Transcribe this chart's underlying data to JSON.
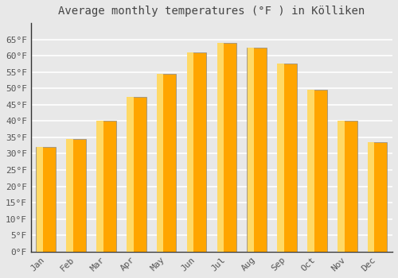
{
  "title": "Average monthly temperatures (°F ) in Kölliken",
  "months": [
    "Jan",
    "Feb",
    "Mar",
    "Apr",
    "May",
    "Jun",
    "Jul",
    "Aug",
    "Sep",
    "Oct",
    "Nov",
    "Dec"
  ],
  "values": [
    32,
    34.5,
    40,
    47.5,
    54.5,
    61,
    64,
    62.5,
    57.5,
    49.5,
    40,
    33.5
  ],
  "bar_color_main": "#FFA500",
  "bar_color_light": "#FFD966",
  "bar_edge_color": "#888888",
  "ylim": [
    0,
    70
  ],
  "yticks": [
    0,
    5,
    10,
    15,
    20,
    25,
    30,
    35,
    40,
    45,
    50,
    55,
    60,
    65
  ],
  "ytick_labels": [
    "0°F",
    "5°F",
    "10°F",
    "15°F",
    "20°F",
    "25°F",
    "30°F",
    "35°F",
    "40°F",
    "45°F",
    "50°F",
    "55°F",
    "60°F",
    "65°F"
  ],
  "title_fontsize": 10,
  "tick_fontsize": 8,
  "background_color": "#e8e8e8",
  "plot_background_color": "#e8e8e8",
  "grid_color": "#ffffff",
  "title_color": "#444444",
  "tick_color": "#555555",
  "spine_color": "#333333"
}
